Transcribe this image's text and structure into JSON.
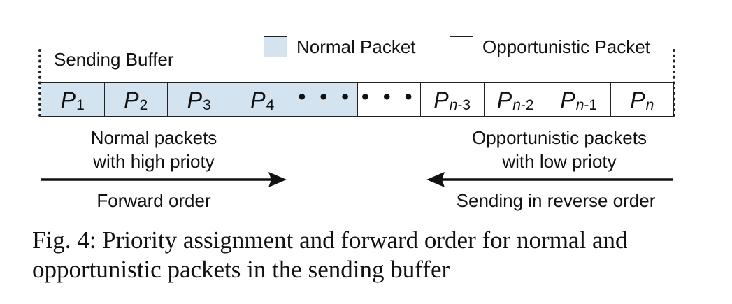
{
  "legend": {
    "normal_label": "Normal Packet",
    "opportunistic_label": "Opportunistic Packet",
    "normal_color": "#d3e3f0",
    "opportunistic_color": "#ffffff"
  },
  "buffer": {
    "title": "Sending Buffer",
    "cells": [
      {
        "type": "normal",
        "base": "P",
        "sub": "1"
      },
      {
        "type": "normal",
        "base": "P",
        "sub": "2"
      },
      {
        "type": "normal",
        "base": "P",
        "sub": "3"
      },
      {
        "type": "normal",
        "base": "P",
        "sub": "4"
      },
      {
        "type": "normal",
        "dots": "• • •"
      },
      {
        "type": "opp",
        "dots": "• • •"
      },
      {
        "type": "opp",
        "base": "P",
        "sub_var": "n",
        "sub_rest": "-3"
      },
      {
        "type": "opp",
        "base": "P",
        "sub_var": "n",
        "sub_rest": "-2"
      },
      {
        "type": "opp",
        "base": "P",
        "sub_var": "n",
        "sub_rest": "-1"
      },
      {
        "type": "opp",
        "base": "P",
        "sub_var": "n",
        "sub_rest": ""
      }
    ]
  },
  "left_side": {
    "line1": "Normal packets",
    "line2": "with high prioty",
    "arrow_label": "Forward order"
  },
  "right_side": {
    "line1": "Opportunistic packets",
    "line2": "with low prioty",
    "arrow_label": "Sending in reverse order"
  },
  "caption": {
    "text": "Fig. 4: Priority assignment and forward order for normal and opportunistic packets in the sending buffer"
  }
}
